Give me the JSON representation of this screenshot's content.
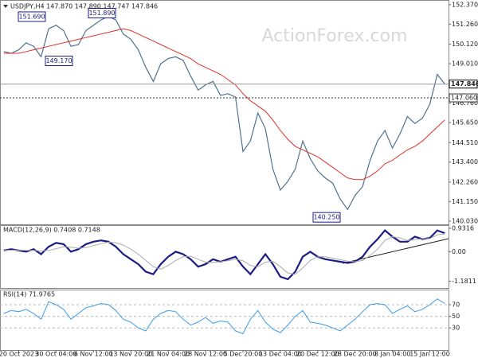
{
  "chart_data": [
    {
      "type": "line",
      "title": "USDJPY,H4 147.870 147.890 147.747 147.846",
      "watermark": "ActionForex.com",
      "ylim": [
        139.85,
        152.64
      ],
      "yticks": [
        {
          "value": 152.37,
          "label": "152.370"
        },
        {
          "value": 151.26,
          "label": "151.260"
        },
        {
          "value": 150.12,
          "label": "150.120"
        },
        {
          "value": 149.01,
          "label": "149.010"
        },
        {
          "value": 147.87,
          "label": "147.870"
        },
        {
          "value": 146.76,
          "label": "146.760"
        },
        {
          "value": 145.65,
          "label": "145.650"
        },
        {
          "value": 144.51,
          "label": "144.510"
        },
        {
          "value": 143.4,
          "label": "143.400"
        },
        {
          "value": 142.26,
          "label": "142.260"
        },
        {
          "value": 141.15,
          "label": "141.150"
        },
        {
          "value": 140.03,
          "label": "140.030"
        }
      ],
      "last_price": {
        "value": 147.846,
        "label": "147.846"
      },
      "level": {
        "value": 147.06,
        "label": "147.060"
      },
      "annotations": [
        {
          "value": 151.69,
          "label": "151.690"
        },
        {
          "value": 149.17,
          "label": "149.170"
        },
        {
          "value": 151.89,
          "label": "151.890"
        },
        {
          "value": 140.25,
          "label": "140.250"
        }
      ],
      "series": [
        {
          "name": "USDJPY",
          "color": "#4f7390",
          "values": [
            149.7,
            149.6,
            149.8,
            150.2,
            150.0,
            149.4,
            151.0,
            151.2,
            150.9,
            150.0,
            150.1,
            150.9,
            151.2,
            151.5,
            151.7,
            151.5,
            150.7,
            150.4,
            149.8,
            148.8,
            148.0,
            149.0,
            149.3,
            149.4,
            149.2,
            148.3,
            147.5,
            147.8,
            148.0,
            147.2,
            147.3,
            147.1,
            144.0,
            144.6,
            146.2,
            145.3,
            143.0,
            141.8,
            142.3,
            143.0,
            144.6,
            143.6,
            142.9,
            142.5,
            142.2,
            141.3,
            140.7,
            141.5,
            142.0,
            143.5,
            144.6,
            145.2,
            144.2,
            145.0,
            146.0,
            145.6,
            145.9,
            146.7,
            148.4,
            147.85
          ]
        },
        {
          "name": "MA",
          "color": "#e0302a",
          "values": [
            149.6,
            149.6,
            149.6,
            149.7,
            149.8,
            149.9,
            150.0,
            150.1,
            150.2,
            150.3,
            150.4,
            150.5,
            150.6,
            150.7,
            150.8,
            150.9,
            151.0,
            150.9,
            150.7,
            150.5,
            150.3,
            150.1,
            149.9,
            149.7,
            149.5,
            149.3,
            149.0,
            148.8,
            148.6,
            148.4,
            148.1,
            147.8,
            147.3,
            146.9,
            146.6,
            146.3,
            145.8,
            145.2,
            144.7,
            144.3,
            144.1,
            143.9,
            143.7,
            143.4,
            143.1,
            142.8,
            142.5,
            142.4,
            142.4,
            142.6,
            142.9,
            143.3,
            143.5,
            143.8,
            144.1,
            144.3,
            144.6,
            145.0,
            145.4,
            145.8
          ]
        }
      ]
    },
    {
      "type": "line",
      "title": "MACD(12,26,9) 0.7408 0.7148",
      "ylim": [
        -1.45,
        1.06
      ],
      "yticks": [
        0.9316,
        {
          "value": 0,
          "label": "0.00"
        },
        -1.1811
      ],
      "series": [
        {
          "name": "MACD",
          "color": "#1c1c85",
          "values": [
            0.05,
            0.1,
            0.05,
            0.0,
            0.1,
            -0.1,
            0.2,
            0.35,
            0.3,
            0.0,
            0.1,
            0.3,
            0.4,
            0.45,
            0.4,
            0.2,
            -0.1,
            -0.3,
            -0.5,
            -0.8,
            -0.9,
            -0.5,
            -0.2,
            0.0,
            -0.1,
            -0.3,
            -0.6,
            -0.5,
            -0.3,
            -0.4,
            -0.3,
            -0.2,
            -0.6,
            -0.9,
            -0.5,
            -0.1,
            -0.5,
            -1.0,
            -1.1,
            -0.8,
            -0.2,
            0.0,
            -0.2,
            -0.3,
            -0.35,
            -0.4,
            -0.45,
            -0.4,
            -0.2,
            0.2,
            0.5,
            0.85,
            0.6,
            0.4,
            0.4,
            0.6,
            0.5,
            0.55,
            0.85,
            0.74
          ]
        },
        {
          "name": "Signal",
          "color": "#aaaaaa",
          "values": [
            0.05,
            0.06,
            0.07,
            0.05,
            0.05,
            0.03,
            0.05,
            0.12,
            0.2,
            0.18,
            0.14,
            0.16,
            0.24,
            0.32,
            0.38,
            0.36,
            0.26,
            0.1,
            -0.1,
            -0.35,
            -0.6,
            -0.7,
            -0.55,
            -0.35,
            -0.2,
            -0.18,
            -0.3,
            -0.42,
            -0.42,
            -0.4,
            -0.36,
            -0.3,
            -0.36,
            -0.55,
            -0.6,
            -0.42,
            -0.38,
            -0.6,
            -0.85,
            -0.9,
            -0.65,
            -0.35,
            -0.2,
            -0.2,
            -0.26,
            -0.32,
            -0.38,
            -0.4,
            -0.35,
            -0.15,
            0.1,
            0.45,
            0.6,
            0.55,
            0.45,
            0.48,
            0.52,
            0.52,
            0.68,
            0.71
          ]
        }
      ]
    },
    {
      "type": "line",
      "title": "RSI(14) 71.9765",
      "ylim": [
        -8,
        96
      ],
      "yticks": [
        70,
        50,
        30
      ],
      "categories": [
        null,
        null,
        "20 Oct 2023",
        null,
        null,
        null,
        null,
        "30 Oct 04:00",
        null,
        null,
        null,
        null,
        "6 Nov 12:00",
        null,
        null,
        null,
        null,
        "13 Nov 20:00",
        null,
        null,
        null,
        null,
        "21 Nov 04:00",
        null,
        null,
        null,
        null,
        "28 Nov 12:00",
        null,
        null,
        null,
        null,
        "5 Dec 20:00",
        null,
        null,
        null,
        null,
        "13 Dec 04:00",
        null,
        null,
        null,
        null,
        "20 Dec 12:00",
        null,
        null,
        null,
        null,
        "28 Dec 20:00",
        null,
        null,
        null,
        null,
        "8 Jan 04:00",
        null,
        null,
        null,
        null,
        "15 Jan 12:00",
        null,
        null
      ],
      "series": [
        {
          "name": "RSI",
          "color": "#3d9be9",
          "values": [
            55,
            60,
            58,
            62,
            55,
            45,
            75,
            70,
            62,
            45,
            55,
            65,
            68,
            72,
            70,
            60,
            45,
            40,
            30,
            25,
            45,
            55,
            60,
            58,
            45,
            35,
            40,
            48,
            38,
            42,
            40,
            25,
            20,
            45,
            60,
            40,
            28,
            22,
            35,
            50,
            60,
            40,
            38,
            35,
            30,
            25,
            35,
            45,
            58,
            70,
            72,
            70,
            55,
            62,
            68,
            58,
            62,
            70,
            80,
            72
          ]
        }
      ]
    }
  ]
}
